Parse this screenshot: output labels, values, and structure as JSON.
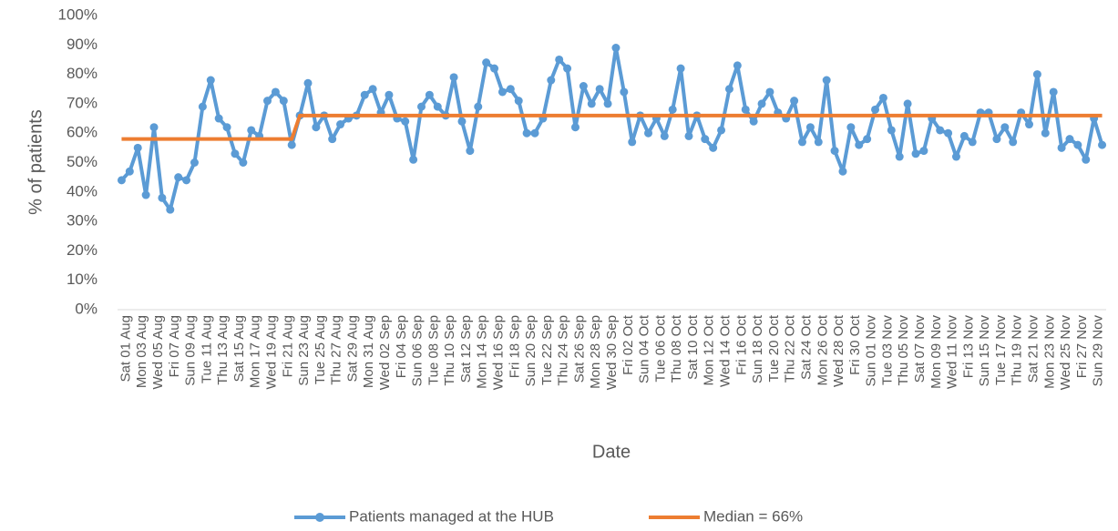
{
  "chart_data": {
    "type": "line",
    "x_label": "Date",
    "y_label": "% of patients",
    "categories": [
      "Sat 01 Aug",
      null,
      "Mon 03 Aug",
      null,
      "Wed 05 Aug",
      null,
      "Fri 07 Aug",
      null,
      "Sun 09 Aug",
      null,
      "Tue 11 Aug",
      null,
      "Thu 13 Aug",
      null,
      "Sat 15 Aug",
      null,
      "Mon 17 Aug",
      null,
      "Wed 19 Aug",
      null,
      "Fri 21 Aug",
      null,
      "Sun 23 Aug",
      null,
      "Tue 25 Aug",
      null,
      "Thu 27 Aug",
      null,
      "Sat 29 Aug",
      null,
      "Mon 31 Aug",
      null,
      "Wed 02 Sep",
      null,
      "Fri 04 Sep",
      null,
      "Sun 06 Sep",
      null,
      "Tue 08 Sep",
      null,
      "Thu 10 Sep",
      null,
      "Sat 12 Sep",
      null,
      "Mon 14 Sep",
      null,
      "Wed 16 Sep",
      null,
      "Fri 18 Sep",
      null,
      "Sun 20 Sep",
      null,
      "Tue 22 Sep",
      null,
      "Thu 24 Sep",
      null,
      "Sat 26 Sep",
      null,
      "Mon 28 Sep",
      null,
      "Wed 30 Sep",
      null,
      "Fri 02 Oct",
      null,
      "Sun 04 Oct",
      null,
      "Tue 06 Oct",
      null,
      "Thu 08 Oct",
      null,
      "Sat 10 Oct",
      null,
      "Mon 12 Oct",
      null,
      "Wed 14 Oct",
      null,
      "Fri 16 Oct",
      null,
      "Sun 18 Oct",
      null,
      "Tue 20 Oct",
      null,
      "Thu 22 Oct",
      null,
      "Sat 24 Oct",
      null,
      "Mon 26 Oct",
      null,
      "Wed 28 Oct",
      null,
      "Fri 30 Oct",
      null,
      "Sun 01 Nov",
      null,
      "Tue 03 Nov",
      null,
      "Thu 05 Nov",
      null,
      "Sat 07 Nov",
      null,
      "Mon 09 Nov",
      null,
      "Wed 11 Nov",
      null,
      "Fri 13 Nov",
      null,
      "Sun 15 Nov",
      null,
      "Tue 17 Nov",
      null,
      "Thu 19 Nov",
      null,
      "Sat 21 Nov",
      null,
      "Mon 23 Nov",
      null,
      "Wed 25 Nov",
      null,
      "Fri 27 Nov",
      null,
      "Sun 29 Nov",
      null
    ],
    "series": [
      {
        "name": "Patients managed at the HUB",
        "color": "#5b9bd5",
        "marker": true,
        "values": [
          44,
          47,
          55,
          39,
          62,
          38,
          34,
          45,
          44,
          50,
          69,
          78,
          65,
          62,
          53,
          50,
          61,
          59,
          71,
          74,
          71,
          56,
          66,
          77,
          62,
          66,
          58,
          63,
          65,
          66,
          73,
          75,
          67,
          73,
          65,
          64,
          51,
          69,
          73,
          69,
          66,
          79,
          64,
          54,
          69,
          84,
          82,
          74,
          75,
          71,
          60,
          60,
          65,
          78,
          85,
          82,
          62,
          76,
          70,
          75,
          70,
          89,
          74,
          57,
          66,
          60,
          65,
          59,
          68,
          82,
          59,
          66,
          58,
          55,
          61,
          75,
          83,
          68,
          64,
          70,
          74,
          67,
          65,
          71,
          57,
          62,
          57,
          78,
          54,
          47,
          62,
          56,
          58,
          68,
          72,
          61,
          52,
          70,
          53,
          54,
          65,
          61,
          60,
          52,
          59,
          57,
          67,
          67,
          58,
          62,
          57,
          67,
          63,
          80,
          60,
          74,
          55,
          58,
          56,
          51,
          65,
          56
        ]
      },
      {
        "name": "Median = 66%",
        "color": "#ed7d31",
        "marker": false,
        "values": [
          58,
          58,
          58,
          58,
          58,
          58,
          58,
          58,
          58,
          58,
          58,
          58,
          58,
          58,
          58,
          58,
          58,
          58,
          58,
          58,
          58,
          58,
          66,
          66,
          66,
          66,
          66,
          66,
          66,
          66,
          66,
          66,
          66,
          66,
          66,
          66,
          66,
          66,
          66,
          66,
          66,
          66,
          66,
          66,
          66,
          66,
          66,
          66,
          66,
          66,
          66,
          66,
          66,
          66,
          66,
          66,
          66,
          66,
          66,
          66,
          66,
          66,
          66,
          66,
          66,
          66,
          66,
          66,
          66,
          66,
          66,
          66,
          66,
          66,
          66,
          66,
          66,
          66,
          66,
          66,
          66,
          66,
          66,
          66,
          66,
          66,
          66,
          66,
          66,
          66,
          66,
          66,
          66,
          66,
          66,
          66,
          66,
          66,
          66,
          66,
          66,
          66,
          66,
          66,
          66,
          66,
          66,
          66,
          66,
          66,
          66,
          66,
          66,
          66,
          66,
          66,
          66,
          66,
          66,
          66,
          66,
          66
        ]
      }
    ],
    "ylim": [
      0,
      100
    ],
    "yticks": [
      {
        "value": 0,
        "label": "0%"
      },
      {
        "value": 10,
        "label": "10%"
      },
      {
        "value": 20,
        "label": "20%"
      },
      {
        "value": 30,
        "label": "30%"
      },
      {
        "value": 40,
        "label": "40%"
      },
      {
        "value": 50,
        "label": "50%"
      },
      {
        "value": 60,
        "label": "60%"
      },
      {
        "value": 70,
        "label": "70%"
      },
      {
        "value": 80,
        "label": "80%"
      },
      {
        "value": 90,
        "label": "90%"
      },
      {
        "value": 100,
        "label": "100%"
      }
    ],
    "grid": false,
    "legend": "bottom"
  }
}
